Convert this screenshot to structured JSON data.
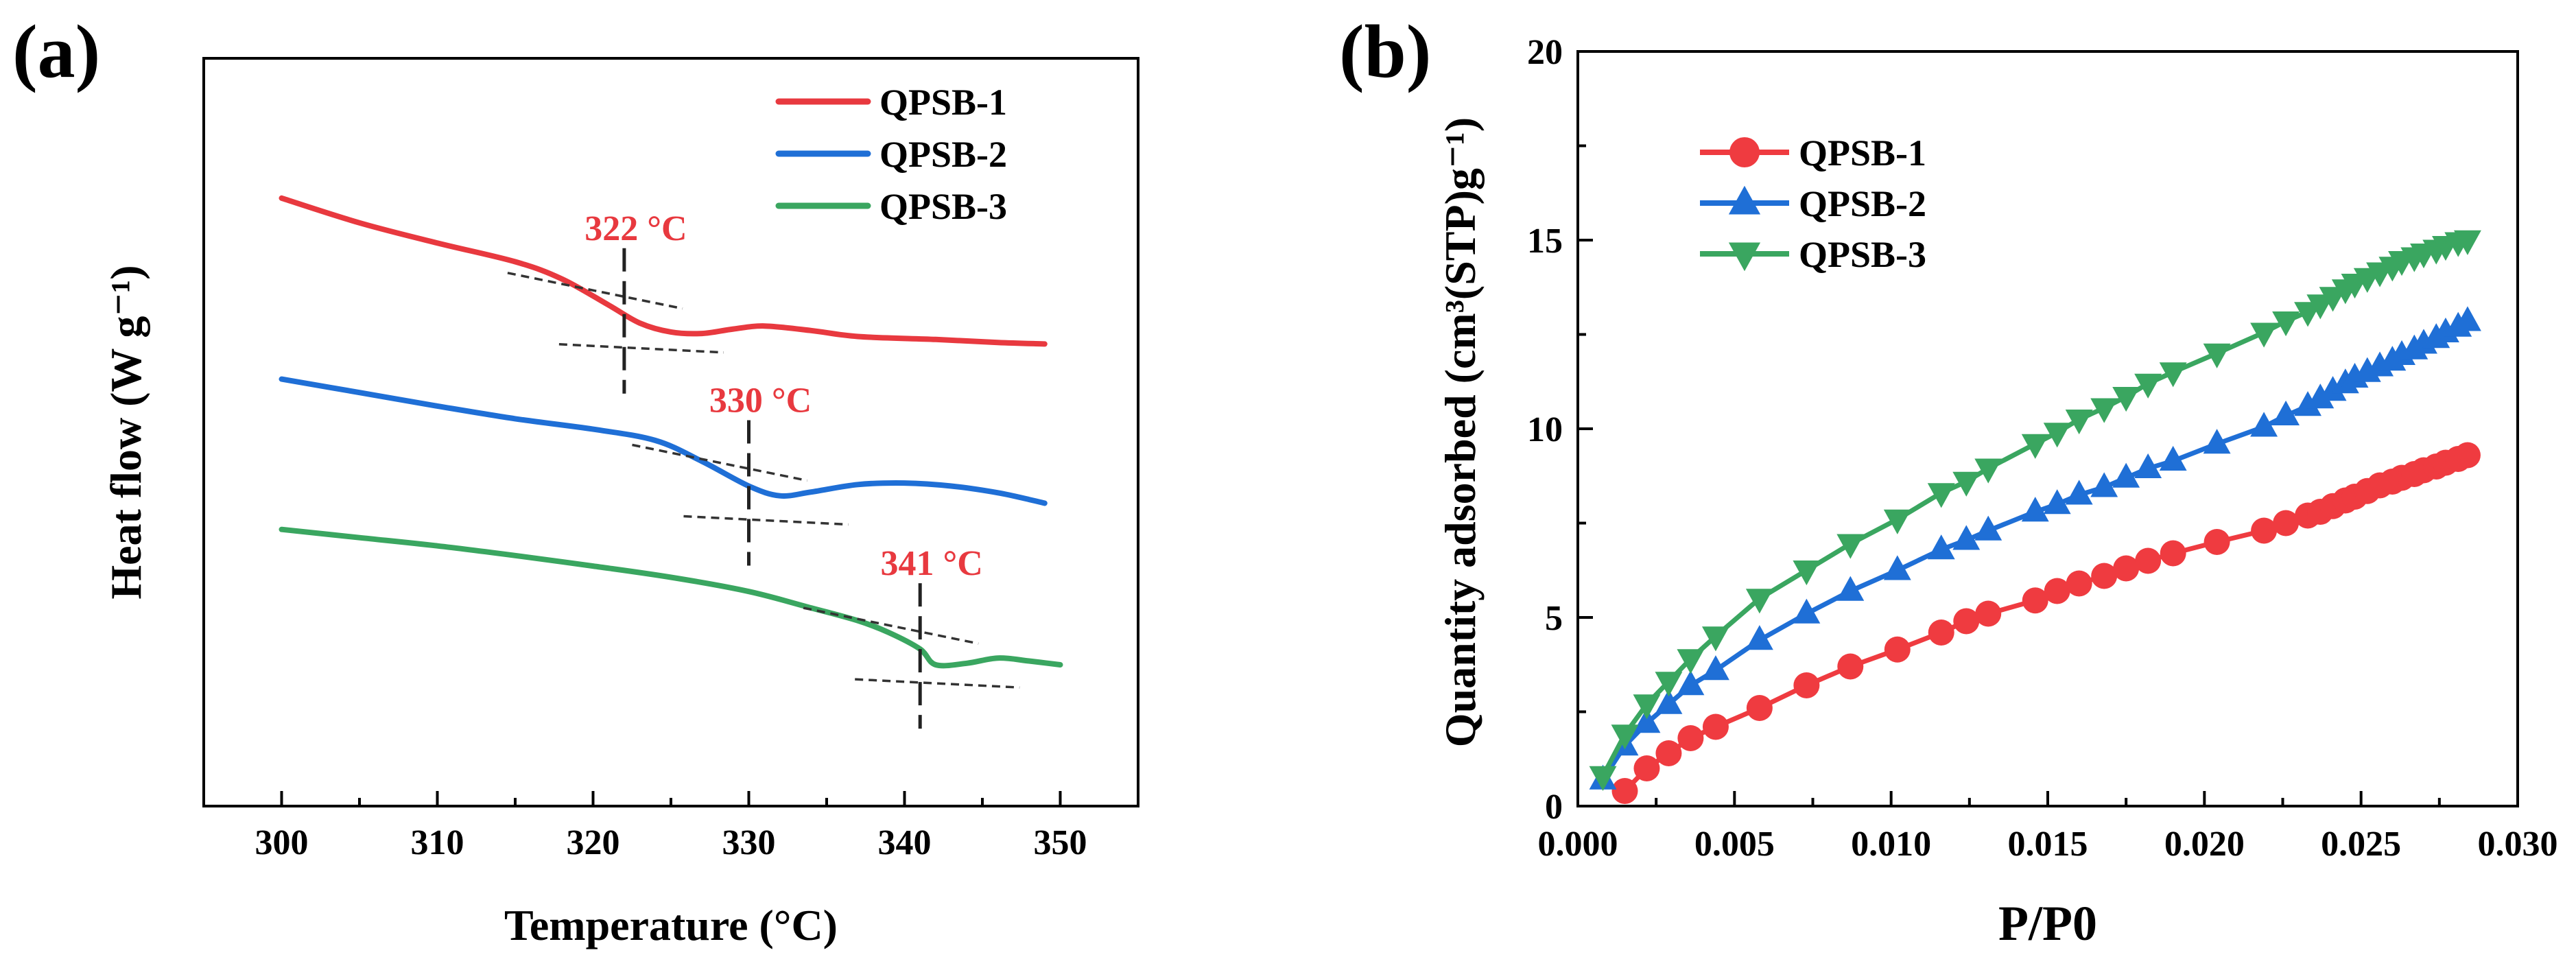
{
  "chart_data": [
    {
      "type": "line",
      "panel_label": "(a)",
      "title": "",
      "xlabel": "Temperature (°C)",
      "ylabel": "Heat flow (W g⁻¹)",
      "xlim": [
        295,
        355
      ],
      "ylim": [
        0,
        100
      ],
      "xticks": [
        300,
        310,
        320,
        330,
        340,
        350
      ],
      "yticks": [],
      "grid": false,
      "legend_position": "top-right",
      "series": [
        {
          "name": "QPSB-1",
          "color": "#e8393f",
          "x": [
            300,
            305,
            310,
            315,
            318,
            321,
            323,
            325,
            327,
            329,
            331,
            334,
            337,
            342,
            346,
            349
          ],
          "y": [
            81.3,
            78.0,
            75.3,
            72.8,
            70.5,
            67.0,
            64.6,
            63.4,
            63.2,
            63.8,
            64.2,
            63.6,
            62.8,
            62.4,
            62.0,
            61.8
          ]
        },
        {
          "name": "QPSB-2",
          "color": "#1f6fd6",
          "x": [
            300,
            305,
            310,
            315,
            320,
            324,
            327,
            330,
            332,
            334,
            337,
            340,
            343,
            346,
            348,
            349
          ],
          "y": [
            57.1,
            55.3,
            53.5,
            51.8,
            50.4,
            48.9,
            46.1,
            42.8,
            41.5,
            42.0,
            43.0,
            43.2,
            42.8,
            41.9,
            41.0,
            40.5
          ]
        },
        {
          "name": "QPSB-3",
          "color": "#3aa660",
          "x": [
            300,
            305,
            310,
            315,
            320,
            325,
            330,
            334,
            337,
            339,
            341,
            342,
            344,
            346,
            348,
            350
          ],
          "y": [
            37.0,
            35.9,
            34.8,
            33.5,
            32.1,
            30.6,
            28.7,
            26.5,
            24.8,
            23.2,
            21.0,
            18.9,
            19.1,
            19.8,
            19.4,
            18.9
          ]
        }
      ],
      "annotations": [
        {
          "text": "322 °C",
          "x": 322,
          "series": "QPSB-1",
          "color": "#e8393f"
        },
        {
          "text": "330 °C",
          "x": 330,
          "series": "QPSB-2",
          "color": "#e8393f"
        },
        {
          "text": "341 °C",
          "x": 341,
          "series": "QPSB-3",
          "color": "#e8393f"
        }
      ]
    },
    {
      "type": "scatter",
      "panel_label": "(b)",
      "title": "",
      "xlabel": "P/P0",
      "ylabel": "Quantity adsorbed (cm³(STP)g⁻¹)",
      "xlim": [
        0,
        0.03
      ],
      "ylim": [
        0,
        20
      ],
      "xticks": [
        "0.000",
        "0.005",
        "0.010",
        "0.015",
        "0.020",
        "0.025",
        "0.030"
      ],
      "yticks": [
        "0",
        "5",
        "10",
        "15",
        "20"
      ],
      "grid": false,
      "legend_position": "top-left",
      "series": [
        {
          "name": "QPSB-1",
          "color": "#ef3b40",
          "marker": "circle",
          "x": [
            0.0015,
            0.0022,
            0.0029,
            0.0036,
            0.0044,
            0.0058,
            0.0073,
            0.0087,
            0.0102,
            0.0116,
            0.0124,
            0.0131,
            0.0146,
            0.0153,
            0.016,
            0.0168,
            0.0175,
            0.0182,
            0.019,
            0.0204,
            0.0219,
            0.0226,
            0.0233,
            0.0237,
            0.0241,
            0.0245,
            0.0248,
            0.0252,
            0.0256,
            0.026,
            0.0263,
            0.0267,
            0.027,
            0.0274,
            0.0277,
            0.0281,
            0.0284
          ],
          "y": [
            0.4,
            1.0,
            1.4,
            1.8,
            2.1,
            2.6,
            3.2,
            3.7,
            4.15,
            4.6,
            4.9,
            5.1,
            5.45,
            5.7,
            5.9,
            6.1,
            6.3,
            6.5,
            6.7,
            7.0,
            7.3,
            7.5,
            7.7,
            7.8,
            7.95,
            8.1,
            8.2,
            8.35,
            8.5,
            8.6,
            8.7,
            8.8,
            8.9,
            9.0,
            9.1,
            9.2,
            9.3
          ]
        },
        {
          "name": "QPSB-2",
          "color": "#1f6fd6",
          "marker": "triangle-up",
          "x": [
            0.0008,
            0.0015,
            0.0022,
            0.0029,
            0.0036,
            0.0044,
            0.0058,
            0.0073,
            0.0087,
            0.0102,
            0.0116,
            0.0124,
            0.0131,
            0.0146,
            0.0153,
            0.016,
            0.0168,
            0.0175,
            0.0182,
            0.019,
            0.0204,
            0.0219,
            0.0226,
            0.0233,
            0.0237,
            0.0241,
            0.0245,
            0.0248,
            0.0252,
            0.0256,
            0.026,
            0.0263,
            0.0267,
            0.027,
            0.0274,
            0.0277,
            0.0281,
            0.0284
          ],
          "y": [
            0.7,
            1.6,
            2.2,
            2.7,
            3.2,
            3.6,
            4.4,
            5.1,
            5.7,
            6.25,
            6.8,
            7.05,
            7.3,
            7.8,
            8.0,
            8.25,
            8.45,
            8.7,
            8.95,
            9.15,
            9.6,
            10.05,
            10.35,
            10.6,
            10.8,
            11.0,
            11.2,
            11.35,
            11.5,
            11.65,
            11.8,
            11.95,
            12.1,
            12.25,
            12.4,
            12.55,
            12.7,
            12.85
          ]
        },
        {
          "name": "QPSB-3",
          "color": "#3aa660",
          "marker": "triangle-down",
          "x": [
            0.0008,
            0.0015,
            0.0022,
            0.0029,
            0.0036,
            0.0044,
            0.0058,
            0.0073,
            0.0087,
            0.0102,
            0.0116,
            0.0124,
            0.0131,
            0.0146,
            0.0153,
            0.016,
            0.0168,
            0.0175,
            0.0182,
            0.019,
            0.0204,
            0.0219,
            0.0226,
            0.0233,
            0.0237,
            0.0241,
            0.0245,
            0.0248,
            0.0252,
            0.0256,
            0.026,
            0.0263,
            0.0267,
            0.027,
            0.0274,
            0.0277,
            0.0281,
            0.0284
          ],
          "y": [
            0.8,
            1.9,
            2.7,
            3.3,
            3.9,
            4.5,
            5.5,
            6.25,
            6.95,
            7.6,
            8.3,
            8.6,
            8.95,
            9.6,
            9.9,
            10.25,
            10.55,
            10.85,
            11.2,
            11.5,
            12.0,
            12.55,
            12.85,
            13.1,
            13.3,
            13.5,
            13.7,
            13.85,
            14.0,
            14.15,
            14.3,
            14.45,
            14.55,
            14.65,
            14.75,
            14.85,
            14.95,
            15.0
          ]
        }
      ]
    }
  ]
}
